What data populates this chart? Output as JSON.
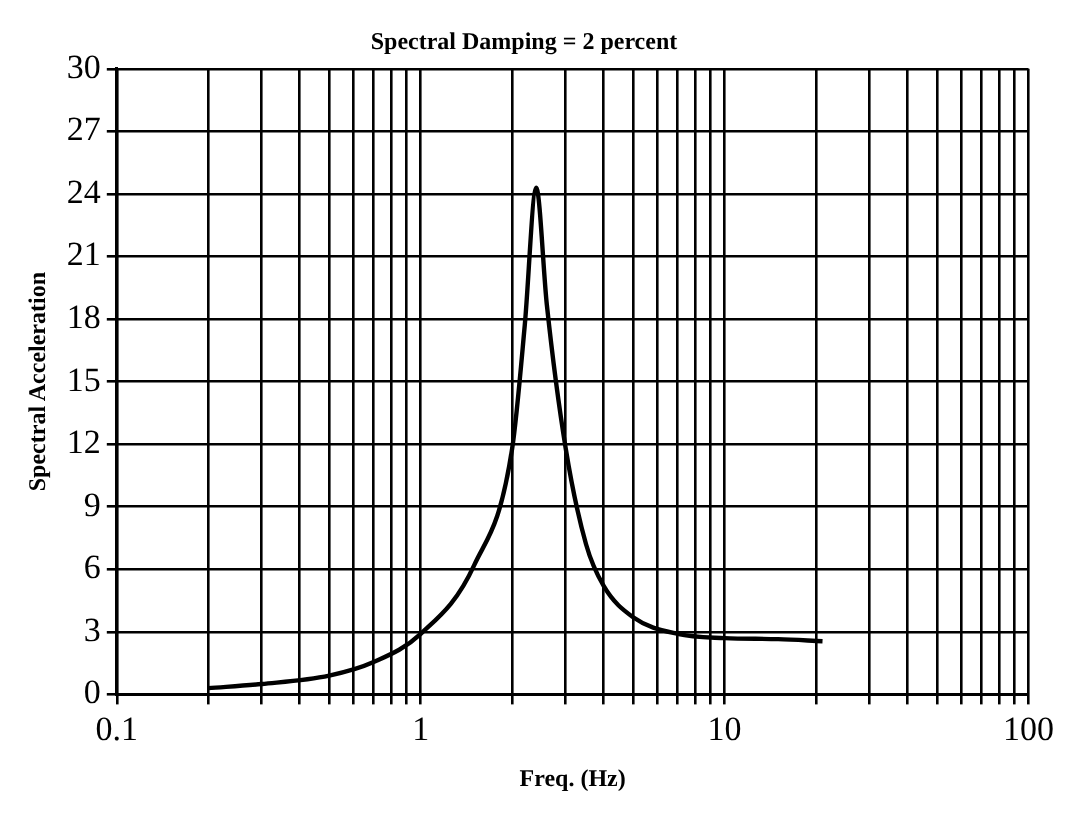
{
  "chart_data": {
    "type": "line",
    "title": "Spectral Damping = 2 percent",
    "xlabel": "Freq. (Hz)",
    "ylabel": "Spectral Acceleration",
    "x": [
      0.2,
      0.3,
      0.5,
      0.7,
      1,
      1.5,
      2,
      2.2,
      2.4,
      2.6,
      3,
      3.5,
      4,
      5,
      7,
      10,
      15,
      21
    ],
    "series": [
      {
        "color": "#000000",
        "values": [
          0.3,
          0.5,
          0.9,
          1.55,
          2.9,
          6.2,
          11.8,
          17.7,
          24.3,
          18.7,
          11.8,
          7.2,
          5.2,
          3.7,
          2.9,
          2.7,
          2.65,
          2.55
        ]
      }
    ],
    "log": "x",
    "xlim": [
      0.1,
      100
    ],
    "xticks": [
      0.1,
      {
        "value": 0.2,
        "label": null
      },
      {
        "value": 0.3,
        "label": null
      },
      {
        "value": 0.4,
        "label": null
      },
      {
        "value": 0.5,
        "label": null
      },
      {
        "value": 0.6,
        "label": null
      },
      {
        "value": 0.7,
        "label": null
      },
      {
        "value": 0.8,
        "label": null
      },
      {
        "value": 0.9,
        "label": null
      },
      1,
      {
        "value": 2,
        "label": null
      },
      {
        "value": 3,
        "label": null
      },
      {
        "value": 4,
        "label": null
      },
      {
        "value": 5,
        "label": null
      },
      {
        "value": 6,
        "label": null
      },
      {
        "value": 7,
        "label": null
      },
      {
        "value": 8,
        "label": null
      },
      {
        "value": 9,
        "label": null
      },
      10,
      {
        "value": 20,
        "label": null
      },
      {
        "value": 30,
        "label": null
      },
      {
        "value": 40,
        "label": null
      },
      {
        "value": 50,
        "label": null
      },
      {
        "value": 60,
        "label": null
      },
      {
        "value": 70,
        "label": null
      },
      {
        "value": 80,
        "label": null
      },
      {
        "value": 90,
        "label": null
      },
      100
    ],
    "ylim": [
      0,
      30
    ],
    "yticks": [
      0,
      3,
      6,
      9,
      12,
      15,
      18,
      21,
      24,
      27,
      30
    ],
    "grid": true,
    "legend": false,
    "marker": "none",
    "line_style": "solid"
  }
}
